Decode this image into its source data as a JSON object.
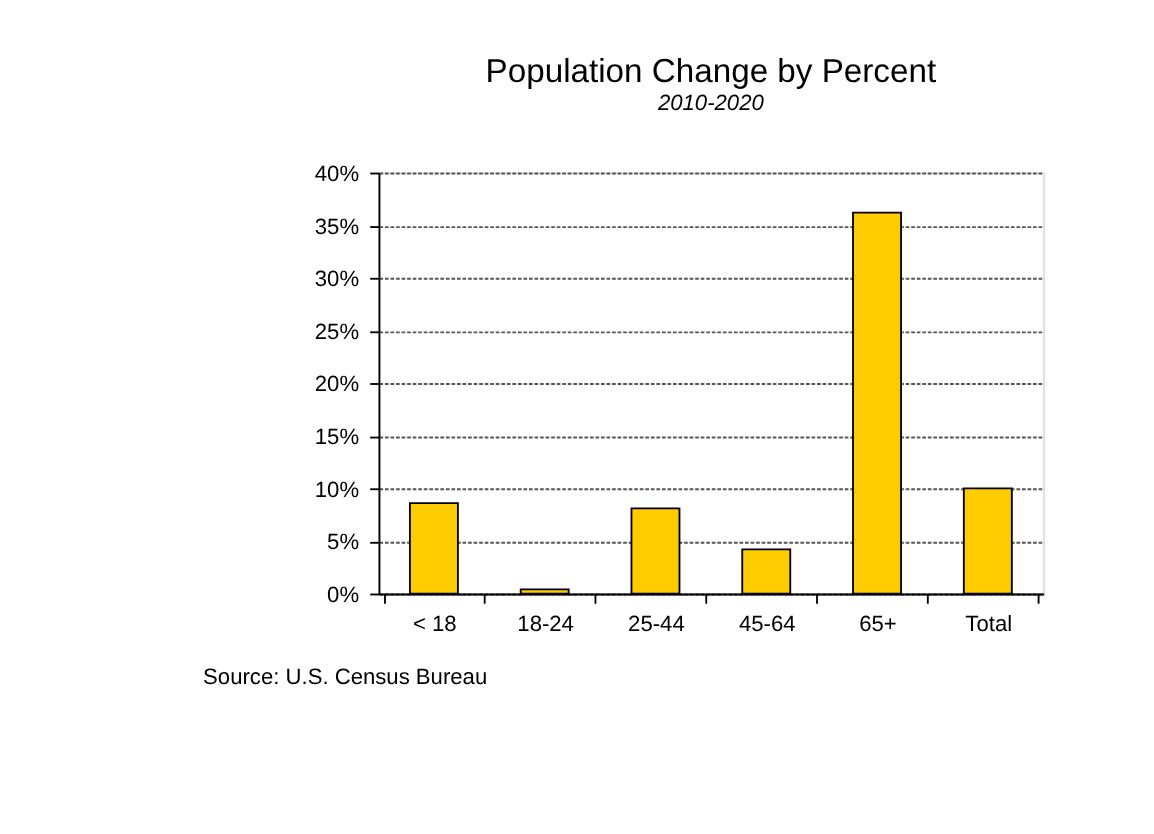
{
  "chart_data": {
    "type": "bar",
    "title": "Population Change by Percent",
    "subtitle": "2010-2020",
    "categories": [
      "< 18",
      "18-24",
      "25-44",
      "45-64",
      "65+",
      "Total"
    ],
    "values": [
      8.6,
      0.4,
      8.1,
      4.2,
      36.2,
      10.0
    ],
    "color": "#ffcc00",
    "ylim": [
      0,
      40
    ],
    "yticks": [
      {
        "value": 0,
        "label": "0%"
      },
      {
        "value": 5,
        "label": "5%"
      },
      {
        "value": 10,
        "label": "10%"
      },
      {
        "value": 15,
        "label": "15%"
      },
      {
        "value": 20,
        "label": "20%"
      },
      {
        "value": 25,
        "label": "25%"
      },
      {
        "value": 30,
        "label": "30%"
      },
      {
        "value": 35,
        "label": "35%"
      },
      {
        "value": 40,
        "label": "40%"
      }
    ],
    "grid": "y",
    "annotations": [
      "Source: U.S. Census Bureau"
    ]
  }
}
